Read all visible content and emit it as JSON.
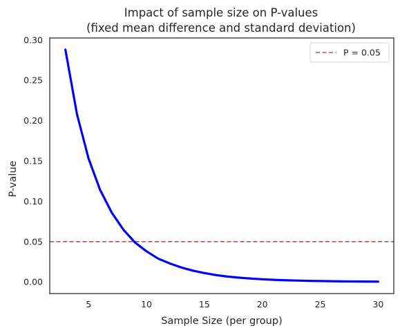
{
  "chart_data": {
    "type": "line",
    "title_line1": "Impact of sample size on P-values",
    "title_line2": "(fixed mean difference and standard deviation)",
    "xlabel": "Sample Size (per group)",
    "ylabel": "P-value",
    "xlim": [
      1.65,
      31.35
    ],
    "ylim": [
      -0.0144,
      0.3024
    ],
    "xticks": [
      5,
      10,
      15,
      20,
      25,
      30
    ],
    "xtick_labels": [
      "5",
      "10",
      "15",
      "20",
      "25",
      "30"
    ],
    "yticks": [
      0.0,
      0.05,
      0.1,
      0.15,
      0.2,
      0.25,
      0.3
    ],
    "ytick_labels": [
      "0.00",
      "0.05",
      "0.10",
      "0.15",
      "0.20",
      "0.25",
      "0.30"
    ],
    "grid": false,
    "legend_position": "top-right",
    "series": [
      {
        "name": "",
        "color": "#0000ff",
        "x": [
          3,
          4,
          5,
          6,
          7,
          8,
          9,
          10,
          11,
          12,
          13,
          14,
          15,
          16,
          17,
          18,
          19,
          20,
          21,
          22,
          23,
          24,
          25,
          26,
          27,
          28,
          29,
          30
        ],
        "y": [
          0.288,
          0.208,
          0.153,
          0.114,
          0.086,
          0.065,
          0.049,
          0.038,
          0.029,
          0.023,
          0.018,
          0.014,
          0.011,
          0.0085,
          0.0067,
          0.0053,
          0.0042,
          0.0033,
          0.0026,
          0.0021,
          0.0017,
          0.0013,
          0.0011,
          0.0009,
          0.0007,
          0.0006,
          0.0005,
          0.0004
        ]
      }
    ],
    "reference_lines": [
      {
        "label": "P = 0.05",
        "y": 0.05,
        "color": "#c44e52",
        "style": "dashed"
      }
    ]
  }
}
